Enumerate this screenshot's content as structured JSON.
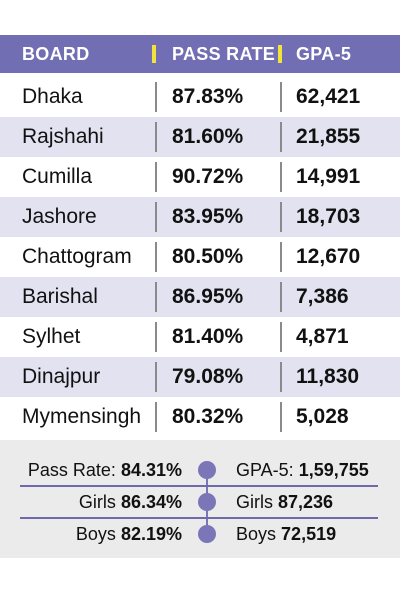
{
  "header": [
    "BOARD",
    "PASS RATE",
    "GPA-5"
  ],
  "rows": [
    [
      "Dhaka",
      "87.83%",
      "62,421"
    ],
    [
      "Rajshahi",
      "81.60%",
      "21,855"
    ],
    [
      "Cumilla",
      "90.72%",
      "14,991"
    ],
    [
      "Jashore",
      "83.95%",
      "18,703"
    ],
    [
      "Chattogram",
      "80.50%",
      "12,670"
    ],
    [
      "Barishal",
      "86.95%",
      "7,386"
    ],
    [
      "Sylhet",
      "81.40%",
      "4,871"
    ],
    [
      "Dinajpur",
      "79.08%",
      "11,830"
    ],
    [
      "Mymensingh",
      "80.32%",
      "5,028"
    ]
  ],
  "summary": [
    {
      "left": {
        "label": "Pass Rate:",
        "value": "84.31%"
      },
      "right": {
        "label": "GPA-5:",
        "value": "1,59,755"
      }
    },
    {
      "left": {
        "label": "Girls",
        "value": "86.34%"
      },
      "right": {
        "label": "Girls",
        "value": "87,236"
      }
    },
    {
      "left": {
        "label": "Boys",
        "value": "82.19%"
      },
      "right": {
        "label": "Boys",
        "value": "72,519"
      }
    }
  ]
}
